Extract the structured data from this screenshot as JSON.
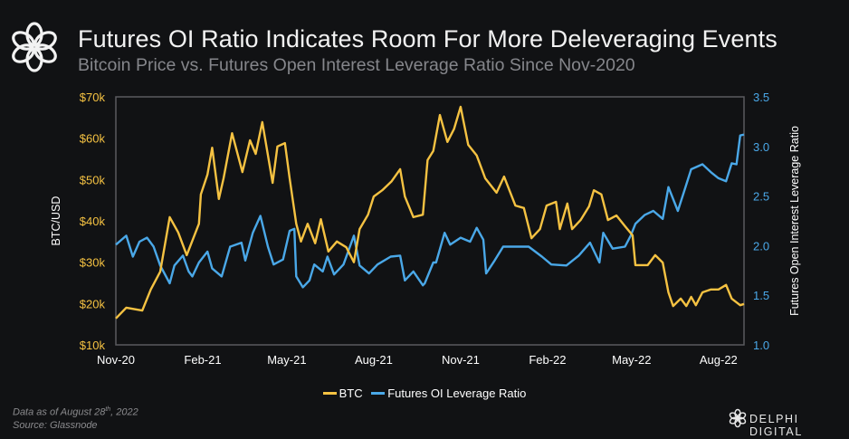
{
  "header": {
    "title": "Futures OI Ratio Indicates Room For More Deleveraging Events",
    "subtitle": "Bitcoin Price vs. Futures Open Interest Leverage Ratio Since Nov-2020"
  },
  "footer": {
    "data_as_of_prefix": "Data as of August 28",
    "data_as_of_sup": "th",
    "data_as_of_suffix": ", 2022",
    "source": "Source: Glassnode",
    "brand": "DELPHI DIGITAL"
  },
  "colors": {
    "background": "#111214",
    "btc": "#f5c242",
    "oi": "#4aa8e8",
    "frame": "#5a5b5e"
  },
  "chart_data": {
    "type": "line",
    "title": "Futures OI Ratio Indicates Room For More Deleveraging Events",
    "subtitle": "Bitcoin Price vs. Futures Open Interest Leverage Ratio Since Nov-2020",
    "xlabel": "",
    "ylabel_left": "BTC/USD",
    "ylabel_right": "Futures Open Interest Leverage Ratio",
    "xlim": [
      "2020-11-01",
      "2022-08-28"
    ],
    "ylim_left": [
      10,
      70
    ],
    "ylim_right": [
      1.0,
      3.5
    ],
    "grid": false,
    "legend_position": "bottom",
    "x_ticks": [
      {
        "date": "2020-11-01",
        "label": "Nov-20"
      },
      {
        "date": "2021-02-01",
        "label": "Feb-21"
      },
      {
        "date": "2021-05-01",
        "label": "May-21"
      },
      {
        "date": "2021-08-01",
        "label": "Aug-21"
      },
      {
        "date": "2021-11-01",
        "label": "Nov-21"
      },
      {
        "date": "2022-02-01",
        "label": "Feb-22"
      },
      {
        "date": "2022-05-01",
        "label": "May-22"
      },
      {
        "date": "2022-08-01",
        "label": "Aug-22"
      }
    ],
    "y_ticks_left": [
      {
        "value": 10,
        "label": "$10k"
      },
      {
        "value": 20,
        "label": "$20k"
      },
      {
        "value": 30,
        "label": "$30k"
      },
      {
        "value": 40,
        "label": "$40k"
      },
      {
        "value": 50,
        "label": "$50k"
      },
      {
        "value": 60,
        "label": "$60k"
      },
      {
        "value": 70,
        "label": "$70k"
      }
    ],
    "y_ticks_right": [
      {
        "value": 1.0,
        "label": "1.0"
      },
      {
        "value": 1.5,
        "label": "1.5"
      },
      {
        "value": 2.0,
        "label": "2.0"
      },
      {
        "value": 2.5,
        "label": "2.5"
      },
      {
        "value": 3.0,
        "label": "3.0"
      },
      {
        "value": 3.5,
        "label": "3.5"
      }
    ],
    "series": [
      {
        "name": "BTC",
        "axis": "left",
        "unit": "USD thousands",
        "color": "#f5c242",
        "points": [
          [
            "2020-11-01",
            16.4
          ],
          [
            "2020-11-12",
            19.0
          ],
          [
            "2020-11-29",
            18.3
          ],
          [
            "2020-12-08",
            23.4
          ],
          [
            "2020-12-18",
            27.7
          ],
          [
            "2020-12-28",
            40.9
          ],
          [
            "2021-01-06",
            37.2
          ],
          [
            "2021-01-15",
            31.7
          ],
          [
            "2021-01-28",
            39.3
          ],
          [
            "2021-01-30",
            46.4
          ],
          [
            "2021-02-06",
            51.2
          ],
          [
            "2021-02-11",
            57.7
          ],
          [
            "2021-02-18",
            45.3
          ],
          [
            "2021-02-23",
            50.3
          ],
          [
            "2021-03-04",
            61.2
          ],
          [
            "2021-03-15",
            51.8
          ],
          [
            "2021-03-23",
            59.5
          ],
          [
            "2021-03-29",
            56.2
          ],
          [
            "2021-04-05",
            63.9
          ],
          [
            "2021-04-16",
            49.2
          ],
          [
            "2021-04-21",
            58.0
          ],
          [
            "2021-04-29",
            58.8
          ],
          [
            "2021-05-04",
            50.3
          ],
          [
            "2021-05-11",
            39.3
          ],
          [
            "2021-05-16",
            35.0
          ],
          [
            "2021-05-23",
            39.3
          ],
          [
            "2021-05-31",
            34.6
          ],
          [
            "2021-06-06",
            40.4
          ],
          [
            "2021-06-14",
            32.6
          ],
          [
            "2021-06-23",
            35.0
          ],
          [
            "2021-07-03",
            33.6
          ],
          [
            "2021-07-11",
            30.0
          ],
          [
            "2021-07-17",
            38.0
          ],
          [
            "2021-07-26",
            41.5
          ],
          [
            "2021-08-01",
            45.9
          ],
          [
            "2021-08-10",
            47.4
          ],
          [
            "2021-08-20",
            49.6
          ],
          [
            "2021-08-29",
            52.5
          ],
          [
            "2021-09-03",
            45.9
          ],
          [
            "2021-09-12",
            40.9
          ],
          [
            "2021-09-22",
            41.5
          ],
          [
            "2021-09-27",
            54.7
          ],
          [
            "2021-10-03",
            56.9
          ],
          [
            "2021-10-10",
            65.6
          ],
          [
            "2021-10-18",
            59.1
          ],
          [
            "2021-10-25",
            62.2
          ],
          [
            "2021-11-01",
            67.6
          ],
          [
            "2021-11-09",
            58.4
          ],
          [
            "2021-11-18",
            55.8
          ],
          [
            "2021-11-27",
            50.3
          ],
          [
            "2021-12-09",
            46.8
          ],
          [
            "2021-12-17",
            50.7
          ],
          [
            "2021-12-29",
            43.7
          ],
          [
            "2022-01-07",
            43.1
          ],
          [
            "2022-01-15",
            35.8
          ],
          [
            "2022-01-24",
            38.0
          ],
          [
            "2022-01-31",
            43.7
          ],
          [
            "2022-02-10",
            44.6
          ],
          [
            "2022-02-14",
            38.0
          ],
          [
            "2022-02-22",
            44.2
          ],
          [
            "2022-02-27",
            38.0
          ],
          [
            "2022-03-08",
            40.2
          ],
          [
            "2022-03-17",
            43.5
          ],
          [
            "2022-03-22",
            47.4
          ],
          [
            "2022-03-30",
            46.4
          ],
          [
            "2022-04-06",
            40.2
          ],
          [
            "2022-04-15",
            41.3
          ],
          [
            "2022-04-24",
            38.7
          ],
          [
            "2022-05-02",
            36.5
          ],
          [
            "2022-05-05",
            29.3
          ],
          [
            "2022-05-18",
            29.3
          ],
          [
            "2022-05-26",
            31.7
          ],
          [
            "2022-06-03",
            29.9
          ],
          [
            "2022-06-09",
            22.7
          ],
          [
            "2022-06-14",
            19.4
          ],
          [
            "2022-06-22",
            21.2
          ],
          [
            "2022-06-28",
            19.4
          ],
          [
            "2022-07-03",
            21.6
          ],
          [
            "2022-07-08",
            19.6
          ],
          [
            "2022-07-15",
            22.7
          ],
          [
            "2022-07-24",
            23.4
          ],
          [
            "2022-08-01",
            23.4
          ],
          [
            "2022-08-09",
            24.5
          ],
          [
            "2022-08-15",
            21.2
          ],
          [
            "2022-08-24",
            19.6
          ],
          [
            "2022-08-28",
            19.9
          ]
        ]
      },
      {
        "name": "Futures OI Leverage Ratio",
        "axis": "right",
        "unit": "ratio",
        "color": "#4aa8e8",
        "points": [
          [
            "2020-11-01",
            2.01
          ],
          [
            "2020-11-12",
            2.1
          ],
          [
            "2020-11-19",
            1.89
          ],
          [
            "2020-11-26",
            2.04
          ],
          [
            "2020-12-04",
            2.08
          ],
          [
            "2020-12-11",
            1.99
          ],
          [
            "2020-12-18",
            1.8
          ],
          [
            "2020-12-28",
            1.62
          ],
          [
            "2021-01-02",
            1.8
          ],
          [
            "2021-01-11",
            1.9
          ],
          [
            "2021-01-17",
            1.74
          ],
          [
            "2021-01-21",
            1.69
          ],
          [
            "2021-01-28",
            1.83
          ],
          [
            "2021-02-06",
            1.94
          ],
          [
            "2021-02-11",
            1.77
          ],
          [
            "2021-02-21",
            1.69
          ],
          [
            "2021-03-02",
            1.99
          ],
          [
            "2021-03-14",
            2.03
          ],
          [
            "2021-03-18",
            1.85
          ],
          [
            "2021-03-26",
            2.13
          ],
          [
            "2021-04-03",
            2.3
          ],
          [
            "2021-04-11",
            1.99
          ],
          [
            "2021-04-17",
            1.81
          ],
          [
            "2021-04-27",
            1.86
          ],
          [
            "2021-05-04",
            2.15
          ],
          [
            "2021-05-09",
            2.17
          ],
          [
            "2021-05-11",
            1.69
          ],
          [
            "2021-05-18",
            1.58
          ],
          [
            "2021-05-25",
            1.65
          ],
          [
            "2021-05-30",
            1.81
          ],
          [
            "2021-06-08",
            1.74
          ],
          [
            "2021-06-13",
            1.89
          ],
          [
            "2021-06-20",
            1.71
          ],
          [
            "2021-06-30",
            1.81
          ],
          [
            "2021-07-11",
            2.1
          ],
          [
            "2021-07-17",
            1.8
          ],
          [
            "2021-07-27",
            1.72
          ],
          [
            "2021-08-05",
            1.81
          ],
          [
            "2021-08-19",
            1.89
          ],
          [
            "2021-08-29",
            1.9
          ],
          [
            "2021-09-03",
            1.65
          ],
          [
            "2021-09-12",
            1.74
          ],
          [
            "2021-09-22",
            1.6
          ],
          [
            "2021-09-24",
            1.62
          ],
          [
            "2021-10-03",
            1.83
          ],
          [
            "2021-10-06",
            1.83
          ],
          [
            "2021-10-15",
            2.13
          ],
          [
            "2021-10-21",
            2.01
          ],
          [
            "2021-11-01",
            2.08
          ],
          [
            "2021-11-11",
            2.04
          ],
          [
            "2021-11-18",
            2.18
          ],
          [
            "2021-11-25",
            2.06
          ],
          [
            "2021-11-28",
            1.72
          ],
          [
            "2021-12-07",
            1.85
          ],
          [
            "2021-12-16",
            1.99
          ],
          [
            "2021-12-29",
            1.99
          ],
          [
            "2022-01-12",
            1.99
          ],
          [
            "2022-01-26",
            1.89
          ],
          [
            "2022-02-05",
            1.81
          ],
          [
            "2022-02-21",
            1.8
          ],
          [
            "2022-03-06",
            1.9
          ],
          [
            "2022-03-18",
            2.03
          ],
          [
            "2022-03-28",
            1.83
          ],
          [
            "2022-04-01",
            2.13
          ],
          [
            "2022-04-11",
            1.97
          ],
          [
            "2022-04-24",
            1.99
          ],
          [
            "2022-04-30",
            2.1
          ],
          [
            "2022-05-05",
            2.22
          ],
          [
            "2022-05-15",
            2.31
          ],
          [
            "2022-05-24",
            2.35
          ],
          [
            "2022-06-03",
            2.27
          ],
          [
            "2022-06-09",
            2.59
          ],
          [
            "2022-06-19",
            2.35
          ],
          [
            "2022-06-26",
            2.56
          ],
          [
            "2022-07-03",
            2.77
          ],
          [
            "2022-07-15",
            2.82
          ],
          [
            "2022-07-24",
            2.74
          ],
          [
            "2022-08-01",
            2.68
          ],
          [
            "2022-08-09",
            2.65
          ],
          [
            "2022-08-15",
            2.83
          ],
          [
            "2022-08-20",
            2.82
          ],
          [
            "2022-08-24",
            3.11
          ],
          [
            "2022-08-28",
            3.12
          ]
        ]
      }
    ]
  }
}
